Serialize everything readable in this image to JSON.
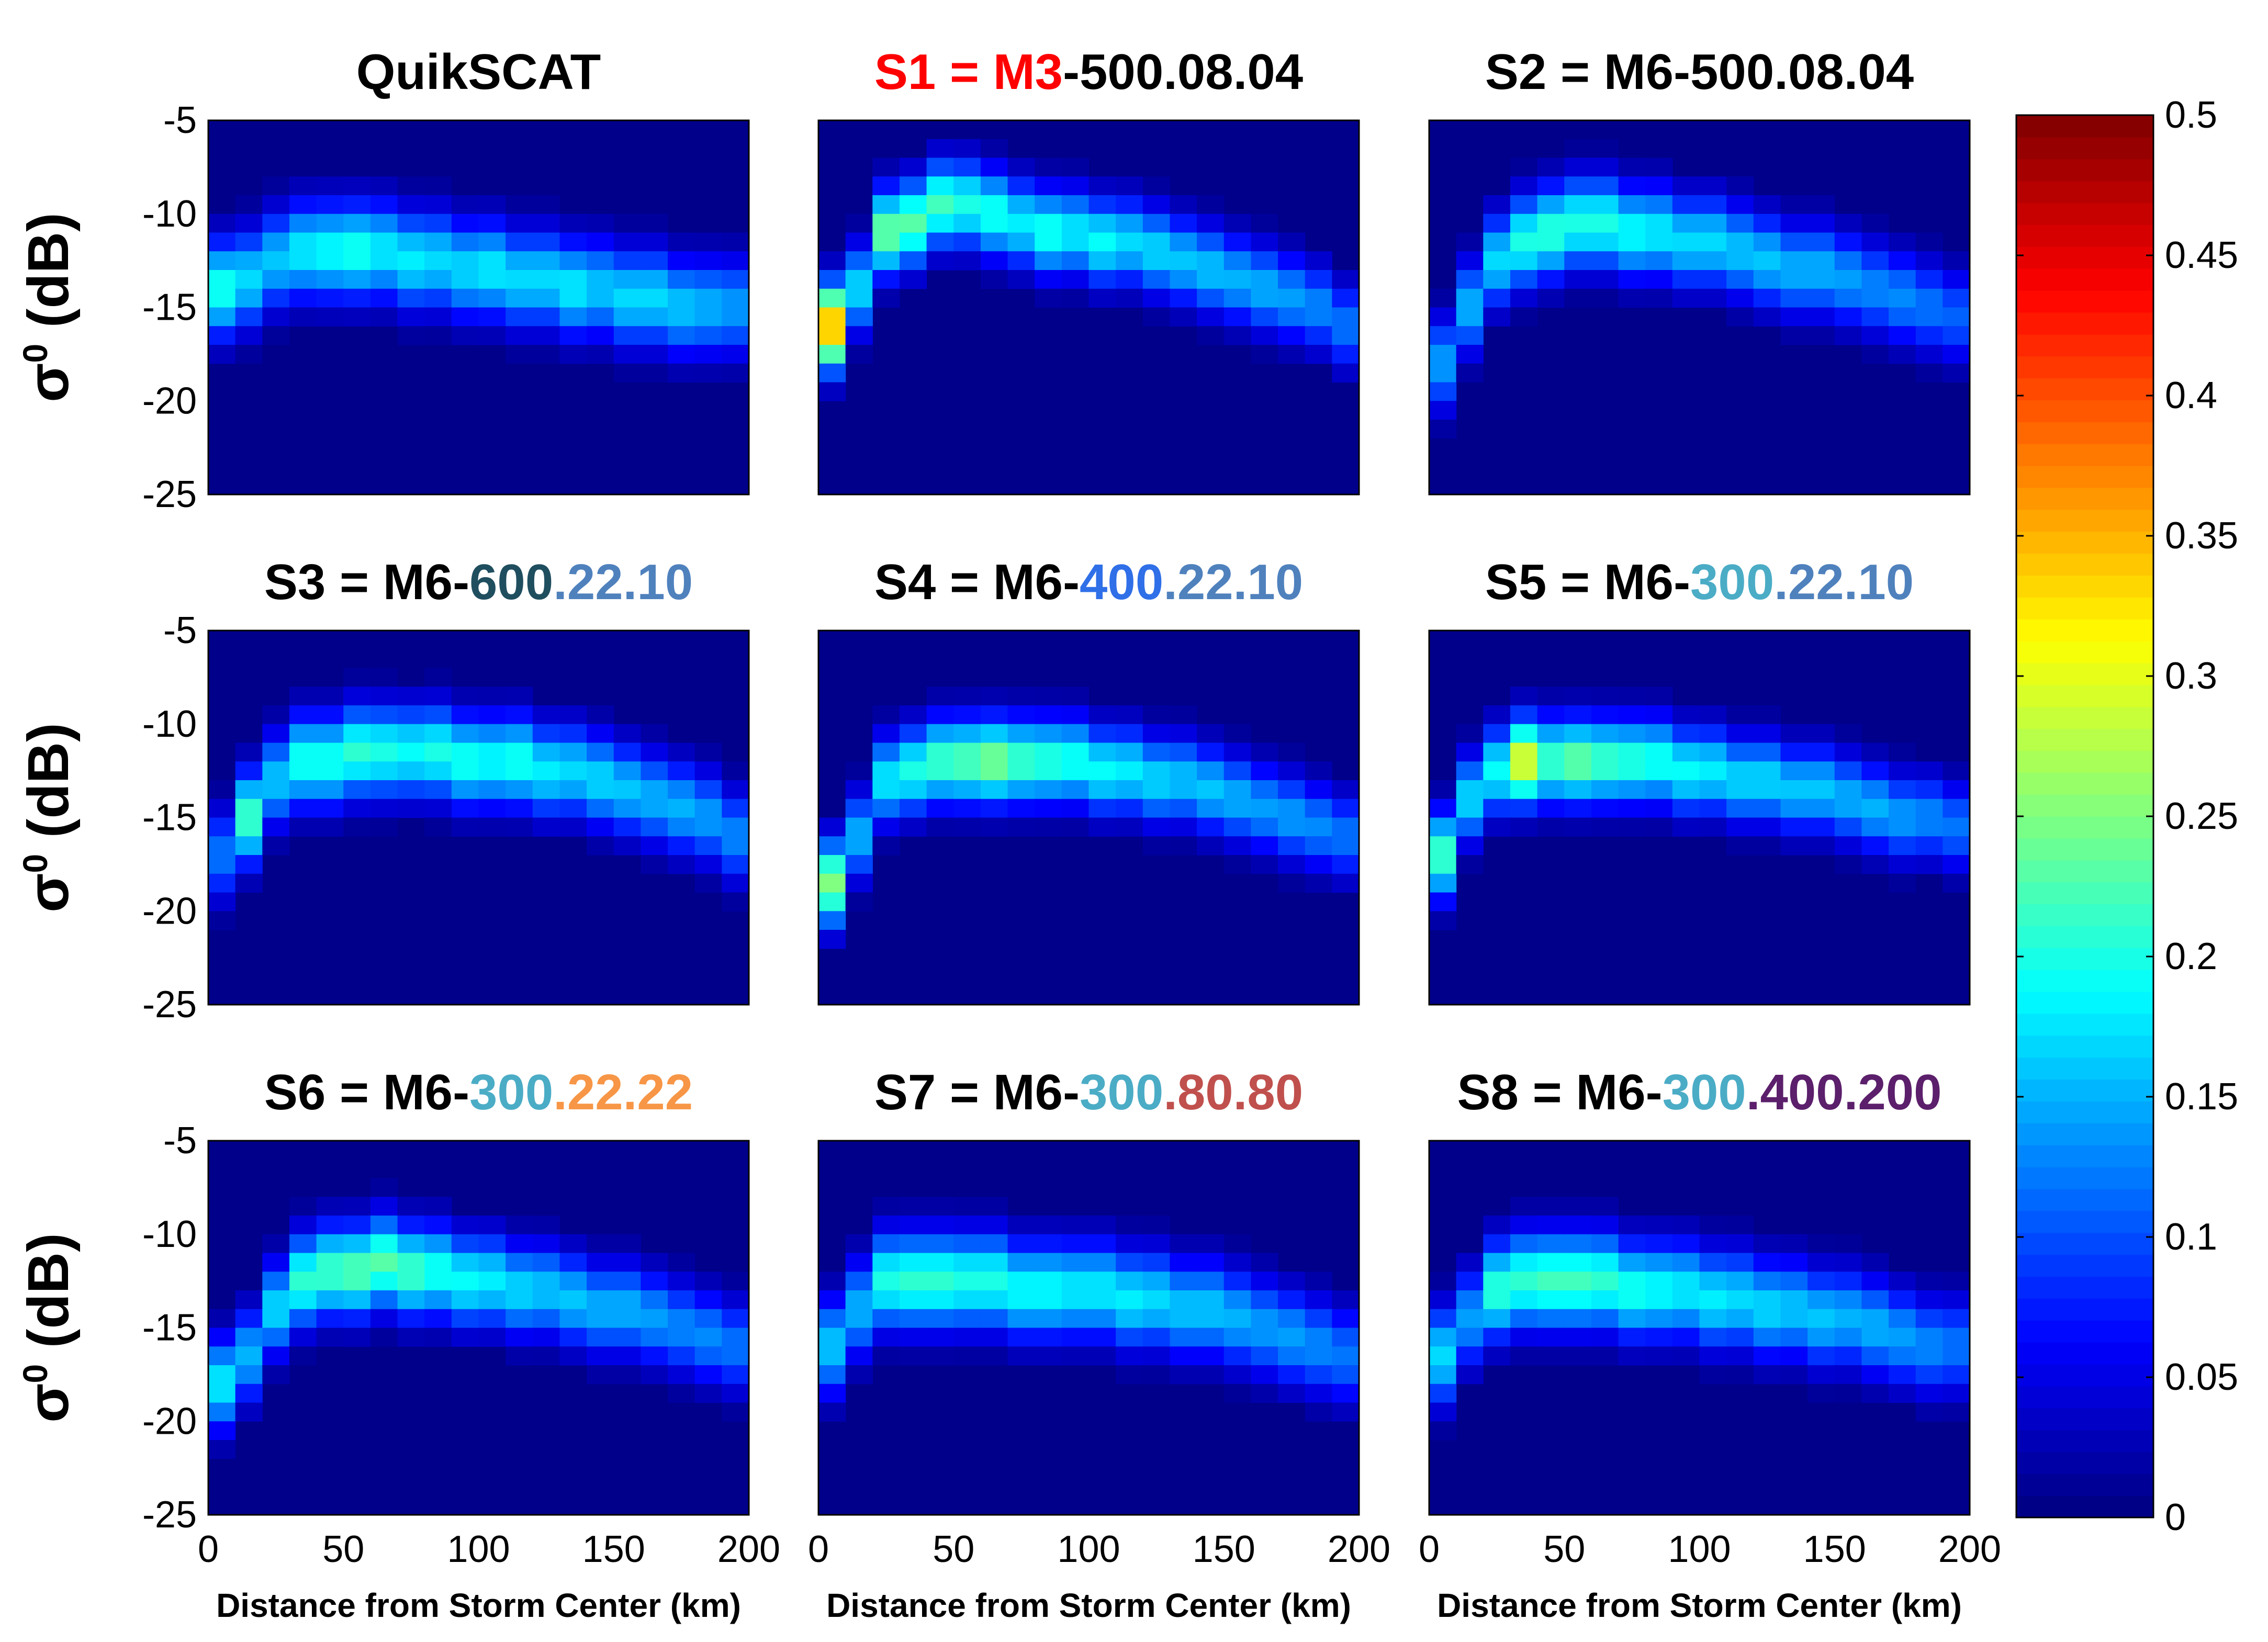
{
  "chart_data": {
    "type": "heatmap",
    "x_range": [
      0,
      200
    ],
    "y_range": [
      -25,
      -5
    ],
    "x_ticks": [
      "0",
      "50",
      "100",
      "150",
      "200"
    ],
    "y_ticks": [
      "-5",
      "-10",
      "-15",
      "-20",
      "-25"
    ],
    "xlabel": "Distance from Storm Center (km)",
    "ylabel": "σ",
    "ylabel_sup": "0",
    "ylabel_units": "(dB)",
    "x_bins": 20,
    "colorbar": {
      "range": [
        0,
        0.5
      ],
      "ticks": [
        "0",
        "0.05",
        "0.1",
        "0.15",
        "0.2",
        "0.25",
        "0.3",
        "0.35",
        "0.4",
        "0.45",
        "0.5"
      ],
      "colormap": "jet"
    },
    "panels": [
      {
        "title_parts": [
          {
            "text": "QuikSCAT",
            "color": "#000000"
          }
        ],
        "ridge_y": [
          -14,
          -13.5,
          -12.5,
          -12,
          -12,
          -12,
          -12,
          -12.5,
          -12.5,
          -13,
          -13,
          -13.5,
          -13.5,
          -14,
          -14,
          -14.5,
          -14.5,
          -15,
          -15,
          -15
        ],
        "ridge_v": [
          0.2,
          0.17,
          0.16,
          0.18,
          0.19,
          0.2,
          0.18,
          0.18,
          0.17,
          0.17,
          0.18,
          0.17,
          0.17,
          0.18,
          0.16,
          0.17,
          0.17,
          0.16,
          0.15,
          0.14
        ],
        "spread": 1.8,
        "hotspots": []
      },
      {
        "title_parts": [
          {
            "text": "S1 = M3",
            "color": "#ff0000"
          },
          {
            "text": "-500.08.04",
            "color": "#000000"
          }
        ],
        "ridge_y": [
          -16,
          -14,
          -11,
          -10.5,
          -9.5,
          -9.5,
          -10,
          -10.5,
          -11,
          -11,
          -11.5,
          -11.5,
          -12,
          -12.5,
          -13,
          -13.5,
          -14,
          -14.5,
          -15,
          -16
        ],
        "ridge_v": [
          0.35,
          0.17,
          0.24,
          0.23,
          0.22,
          0.2,
          0.2,
          0.18,
          0.2,
          0.18,
          0.19,
          0.17,
          0.17,
          0.16,
          0.16,
          0.15,
          0.15,
          0.14,
          0.13,
          0.12
        ],
        "spread": 1.6,
        "hotspots": []
      },
      {
        "title_parts": [
          {
            "text": "S2 = M6-500.08.04",
            "color": "#000000"
          }
        ],
        "ridge_y": [
          -18,
          -15,
          -12.5,
          -11.5,
          -11,
          -10.5,
          -10.5,
          -11,
          -11,
          -11.5,
          -11.5,
          -12,
          -12.5,
          -13,
          -13,
          -13.5,
          -14,
          -14.5,
          -15,
          -15.5
        ],
        "ridge_v": [
          0.14,
          0.15,
          0.17,
          0.2,
          0.21,
          0.2,
          0.2,
          0.19,
          0.18,
          0.17,
          0.17,
          0.16,
          0.16,
          0.15,
          0.15,
          0.14,
          0.13,
          0.13,
          0.12,
          0.11
        ],
        "spread": 1.7,
        "hotspots": []
      },
      {
        "title_parts": [
          {
            "text": "S3 = M6-",
            "color": "#000000"
          },
          {
            "text": "600",
            "color": "#1f4e5f"
          },
          {
            "text": ".22.10",
            "color": "#4f81bd"
          }
        ],
        "ridge_y": [
          -17,
          -15,
          -13,
          -12,
          -12,
          -11.5,
          -11.5,
          -11.5,
          -11.5,
          -12,
          -12,
          -12,
          -12.5,
          -12.5,
          -13,
          -13.5,
          -14,
          -14.5,
          -15,
          -16
        ],
        "ridge_v": [
          0.12,
          0.22,
          0.16,
          0.2,
          0.2,
          0.21,
          0.2,
          0.19,
          0.2,
          0.2,
          0.19,
          0.2,
          0.18,
          0.17,
          0.17,
          0.16,
          0.15,
          0.15,
          0.14,
          0.13
        ],
        "spread": 1.7,
        "hotspots": []
      },
      {
        "title_parts": [
          {
            "text": "S4 = M6-",
            "color": "#000000"
          },
          {
            "text": "400",
            "color": "#2f6fe8"
          },
          {
            "text": ".22.10",
            "color": "#4f81bd"
          }
        ],
        "ridge_y": [
          -18.5,
          -16,
          -13,
          -12.5,
          -12,
          -12,
          -12,
          -12,
          -12,
          -12,
          -12.5,
          -12.5,
          -13,
          -13,
          -13.5,
          -14,
          -14.5,
          -15,
          -15.5,
          -16
        ],
        "ridge_v": [
          0.25,
          0.15,
          0.18,
          0.2,
          0.22,
          0.23,
          0.25,
          0.22,
          0.21,
          0.2,
          0.19,
          0.18,
          0.17,
          0.16,
          0.16,
          0.15,
          0.14,
          0.14,
          0.13,
          0.12
        ],
        "spread": 1.6,
        "hotspots": []
      },
      {
        "title_parts": [
          {
            "text": "S5 = M6-",
            "color": "#000000"
          },
          {
            "text": "300",
            "color": "#4bacc6"
          },
          {
            "text": ".22.10",
            "color": "#4f81bd"
          }
        ],
        "ridge_y": [
          -17,
          -14,
          -12.5,
          -12,
          -12,
          -12,
          -12,
          -12,
          -12,
          -12.5,
          -12.5,
          -13,
          -13,
          -13.5,
          -13.5,
          -14,
          -14.5,
          -15,
          -15,
          -15.5
        ],
        "ridge_v": [
          0.22,
          0.17,
          0.19,
          0.3,
          0.22,
          0.24,
          0.22,
          0.21,
          0.2,
          0.19,
          0.18,
          0.17,
          0.17,
          0.16,
          0.16,
          0.15,
          0.15,
          0.14,
          0.13,
          0.12
        ],
        "spread": 1.6,
        "hotspots": []
      },
      {
        "title_parts": [
          {
            "text": "S6 = M6-",
            "color": "#000000"
          },
          {
            "text": "300",
            "color": "#4bacc6"
          },
          {
            "text": ".22.22",
            "color": "#f79646"
          }
        ],
        "ridge_y": [
          -18,
          -16.5,
          -14,
          -12.5,
          -12,
          -12,
          -11.5,
          -12,
          -12,
          -12.5,
          -12.5,
          -13,
          -13,
          -13.5,
          -14,
          -14,
          -14.5,
          -15,
          -15.5,
          -16
        ],
        "ridge_v": [
          0.18,
          0.15,
          0.17,
          0.21,
          0.22,
          0.23,
          0.23,
          0.22,
          0.2,
          0.19,
          0.18,
          0.17,
          0.16,
          0.16,
          0.15,
          0.15,
          0.14,
          0.13,
          0.13,
          0.12
        ],
        "spread": 1.7,
        "hotspots": []
      },
      {
        "title_parts": [
          {
            "text": "S7 = M6-",
            "color": "#000000"
          },
          {
            "text": "300",
            "color": "#4bacc6"
          },
          {
            "text": ".80.80",
            "color": "#c0504d"
          }
        ],
        "ridge_y": [
          -16,
          -14,
          -12.5,
          -12.5,
          -12.5,
          -12.5,
          -12.5,
          -13,
          -13,
          -13,
          -13,
          -13.5,
          -13.5,
          -14,
          -14,
          -14.5,
          -15,
          -15.5,
          -16,
          -16.5
        ],
        "ridge_v": [
          0.16,
          0.15,
          0.2,
          0.21,
          0.21,
          0.2,
          0.2,
          0.19,
          0.19,
          0.18,
          0.18,
          0.18,
          0.17,
          0.16,
          0.16,
          0.15,
          0.14,
          0.14,
          0.13,
          0.12
        ],
        "spread": 1.8,
        "hotspots": []
      },
      {
        "title_parts": [
          {
            "text": "S8 = M6-",
            "color": "#000000"
          },
          {
            "text": "300",
            "color": "#4bacc6"
          },
          {
            "text": ".400.200",
            "color": "#5b1f6b"
          }
        ],
        "ridge_y": [
          -16.5,
          -14.5,
          -13,
          -12.5,
          -12.5,
          -12.5,
          -12.5,
          -13,
          -13,
          -13,
          -13.5,
          -13.5,
          -14,
          -14,
          -14.5,
          -14.5,
          -15,
          -15.5,
          -16,
          -16
        ],
        "ridge_v": [
          0.17,
          0.14,
          0.21,
          0.21,
          0.22,
          0.22,
          0.21,
          0.2,
          0.19,
          0.18,
          0.18,
          0.17,
          0.17,
          0.16,
          0.16,
          0.15,
          0.15,
          0.14,
          0.13,
          0.12
        ],
        "spread": 1.8,
        "hotspots": []
      }
    ]
  }
}
